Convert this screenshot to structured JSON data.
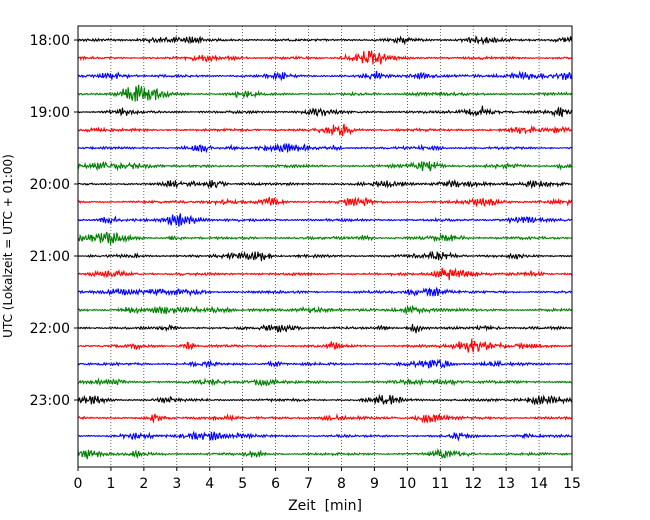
{
  "chart_data": {
    "type": "line",
    "subtype": "helicorder",
    "title": "",
    "xlabel": "Zeit  [min]",
    "ylabel": "UTC (Lokalzeit = UTC + 01:00)",
    "xlim": [
      0,
      15
    ],
    "xticks": [
      "0",
      "1",
      "2",
      "3",
      "4",
      "5",
      "6",
      "7",
      "8",
      "9",
      "10",
      "11",
      "12",
      "13",
      "14",
      "15"
    ],
    "hour_labels": [
      "18:00",
      "19:00",
      "20:00",
      "21:00",
      "22:00",
      "23:00"
    ],
    "grid": {
      "x": "dotted",
      "y": "off"
    },
    "trace_colors": [
      "#000000",
      "#ff0000",
      "#0000ff",
      "#008000"
    ],
    "series": [
      {
        "start": "18:00",
        "color": "#000000"
      },
      {
        "start": "18:15",
        "color": "#ff0000"
      },
      {
        "start": "18:30",
        "color": "#0000ff"
      },
      {
        "start": "18:45",
        "color": "#008000"
      },
      {
        "start": "19:00",
        "color": "#000000"
      },
      {
        "start": "19:15",
        "color": "#ff0000"
      },
      {
        "start": "19:30",
        "color": "#0000ff"
      },
      {
        "start": "19:45",
        "color": "#008000"
      },
      {
        "start": "20:00",
        "color": "#000000"
      },
      {
        "start": "20:15",
        "color": "#ff0000"
      },
      {
        "start": "20:30",
        "color": "#0000ff"
      },
      {
        "start": "20:45",
        "color": "#008000"
      },
      {
        "start": "21:00",
        "color": "#000000"
      },
      {
        "start": "21:15",
        "color": "#ff0000"
      },
      {
        "start": "21:30",
        "color": "#0000ff"
      },
      {
        "start": "21:45",
        "color": "#008000"
      },
      {
        "start": "22:00",
        "color": "#000000"
      },
      {
        "start": "22:15",
        "color": "#ff0000"
      },
      {
        "start": "22:30",
        "color": "#0000ff"
      },
      {
        "start": "22:45",
        "color": "#008000"
      },
      {
        "start": "23:00",
        "color": "#000000"
      },
      {
        "start": "23:15",
        "color": "#ff0000"
      },
      {
        "start": "23:30",
        "color": "#0000ff"
      },
      {
        "start": "23:45",
        "color": "#008000"
      }
    ]
  }
}
